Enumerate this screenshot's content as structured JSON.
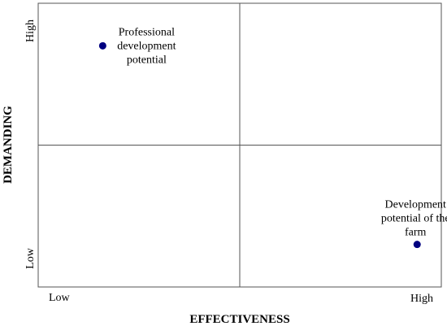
{
  "chart_data": {
    "type": "scatter",
    "title": "",
    "xlabel": "EFFECTIVENESS",
    "ylabel": "DEMANDING",
    "xlim": [
      0,
      100
    ],
    "ylim": [
      0,
      100
    ],
    "grid": "quadrant lines at midpoint",
    "x_tick_labels": {
      "low": "Low",
      "high": "High"
    },
    "y_tick_labels": {
      "low": "Low",
      "high": "High"
    },
    "points": [
      {
        "x": 16,
        "y": 85,
        "label": [
          "Professional",
          "development",
          "potential"
        ]
      },
      {
        "x": 94,
        "y": 15,
        "label": [
          "Development",
          "potential of the",
          "farm"
        ]
      }
    ],
    "marker_color": "#000080",
    "line_color": "#555555"
  }
}
